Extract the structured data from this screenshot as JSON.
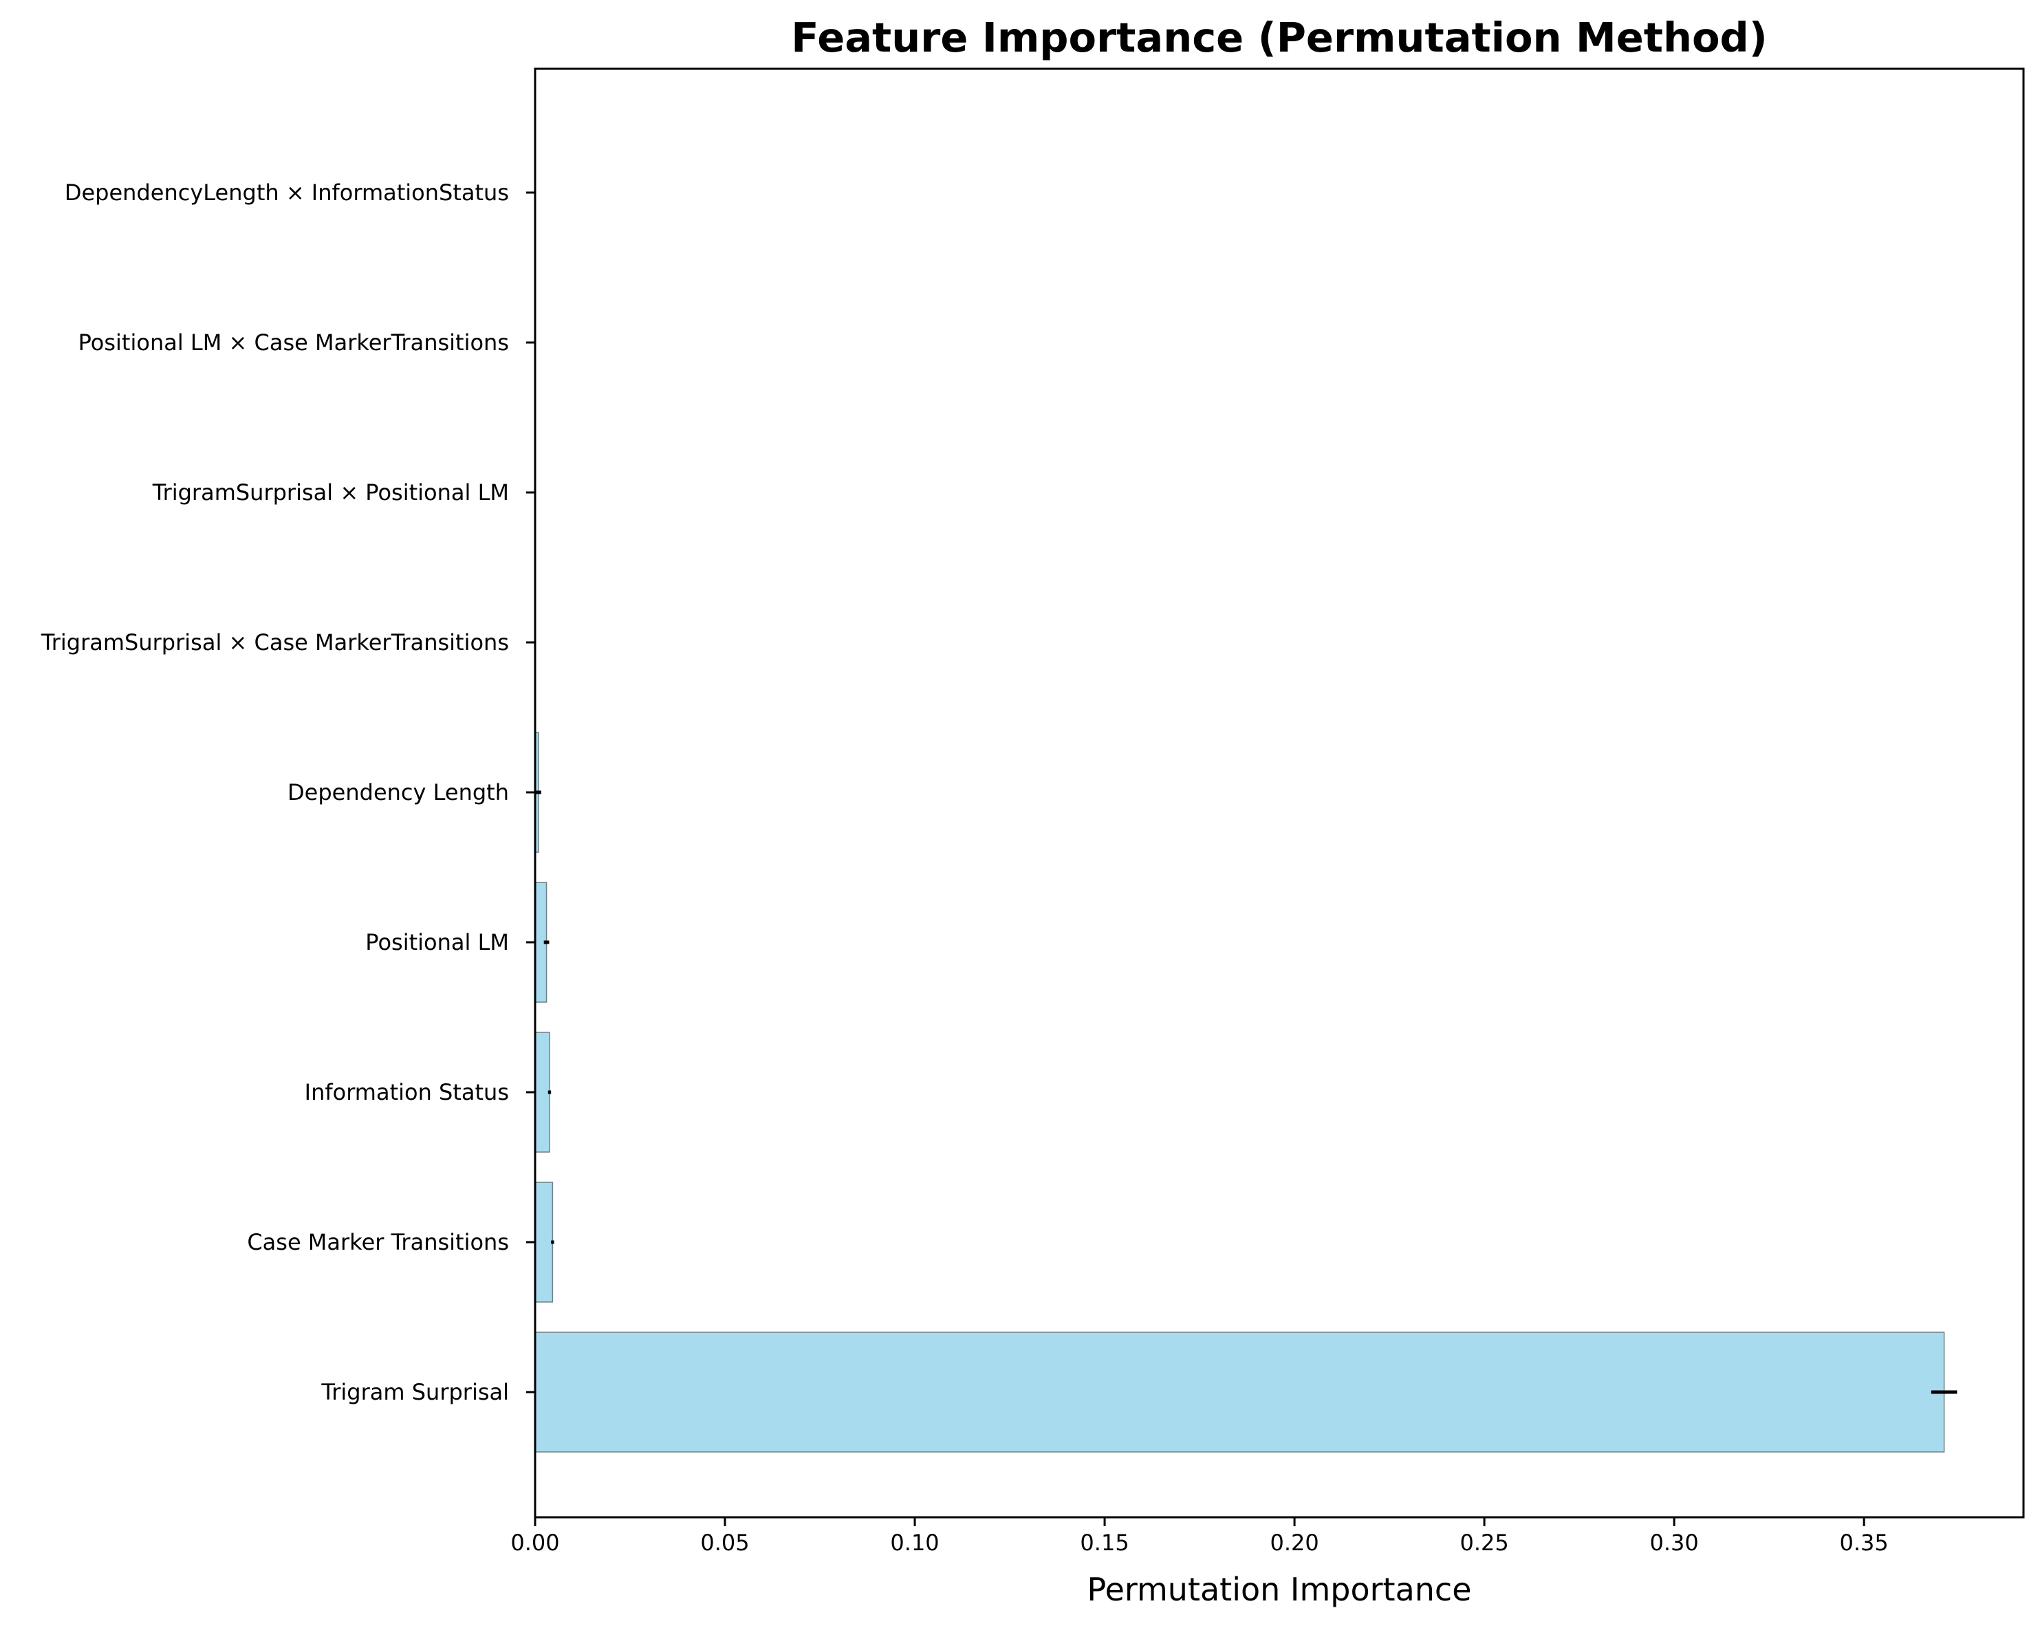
{
  "chart_data": {
    "type": "bar",
    "orientation": "horizontal",
    "title": "Feature Importance (Permutation Method)",
    "xlabel": "Permutation Importance",
    "ylabel": "",
    "xlim": [
      0,
      0.392
    ],
    "x_ticks": [
      "0.00",
      "0.05",
      "0.10",
      "0.15",
      "0.20",
      "0.25",
      "0.30",
      "0.35"
    ],
    "x_tick_values": [
      0,
      0.05,
      0.1,
      0.15,
      0.2,
      0.25,
      0.3,
      0.35
    ],
    "categories": [
      "Trigram Surprisal",
      "Case Marker Transitions",
      "Information Status",
      "Positional LM",
      "Dependency Length",
      "TrigramSurprisal × Case MarkerTransitions",
      "TrigramSurprisal × Positional LM",
      "Positional LM × Case MarkerTransitions",
      "DependencyLength × InformationStatus"
    ],
    "values": [
      0.3711,
      0.0046,
      0.0038,
      0.003,
      0.0009,
      0.0,
      0.0,
      0.0,
      0.0
    ],
    "errors": [
      0.0034,
      0.0004,
      0.0004,
      0.0007,
      0.0007,
      0.0,
      0.0,
      0.0,
      0.0
    ],
    "grid": false,
    "colors": {
      "bar_fill": "#a8dbee",
      "bar_edge": "#6e7f86",
      "error_bar": "#000000",
      "axis": "#000000"
    }
  }
}
